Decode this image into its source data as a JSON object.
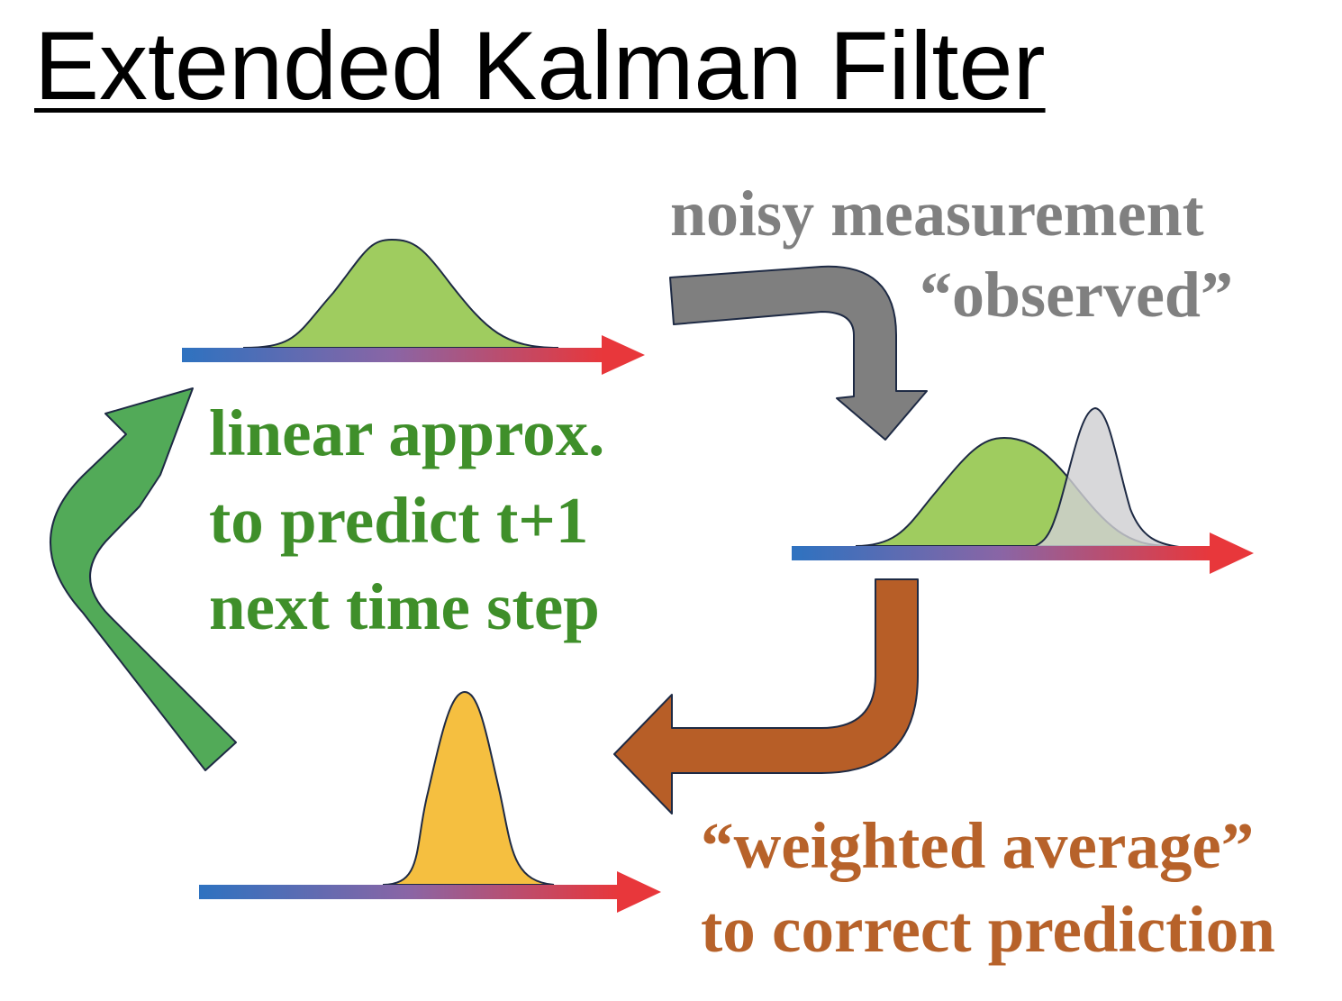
{
  "title": "Extended Kalman Filter",
  "labels": {
    "measurement_line1": "noisy measurement",
    "measurement_line2": "“observed”",
    "predict_line1": "linear approx.",
    "predict_line2": "to predict t+1",
    "predict_line3": "next time step",
    "update_line1": "“weighted average”",
    "update_line2": "to correct prediction"
  },
  "colors": {
    "axis_start": "#2e72c0",
    "axis_end": "#e8373b",
    "prediction_fill": "#9fcc5f",
    "measurement_fill": "#d0d0d2",
    "estimate_fill": "#f5bf40",
    "measurement_arrow": "#7f7f7f",
    "update_arrow": "#b75e27",
    "predict_arrow": "#52aa58",
    "outline": "#1e2a44",
    "measurement_text": "#808080",
    "predict_text": "#3f8f2a",
    "update_text": "#b7622a"
  },
  "icons": {
    "prediction_axis": "gradient-right-arrow",
    "measurement_axis": "gradient-right-arrow",
    "estimate_axis": "gradient-right-arrow",
    "measurement_arrow": "curved-arrow-down",
    "update_arrow": "curved-arrow-left",
    "predict_arrow": "curved-arrow-up-right"
  }
}
